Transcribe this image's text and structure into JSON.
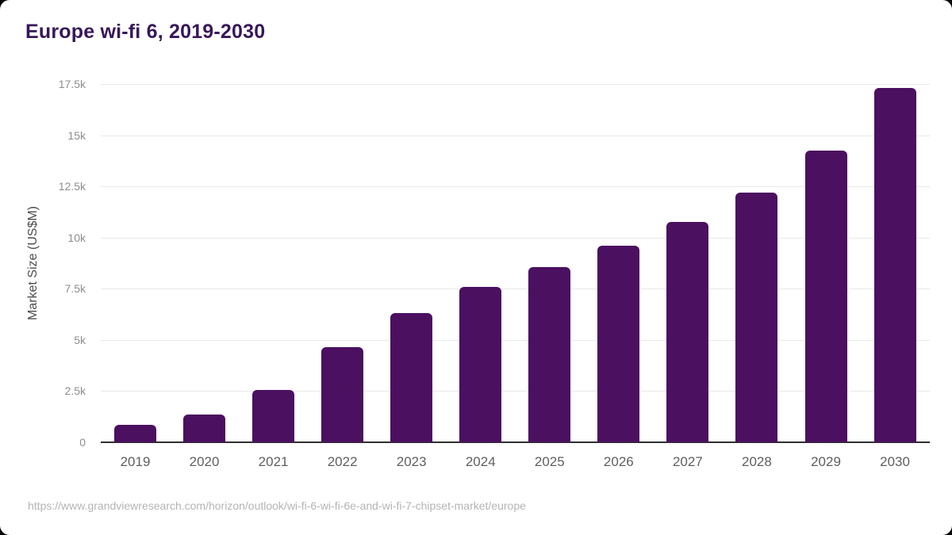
{
  "page": {
    "background_color": "#000000",
    "card_color": "#ffffff"
  },
  "header": {
    "title": "Europe wi-fi 6, 2019-2030",
    "title_color": "#381758"
  },
  "chart_data": {
    "type": "bar",
    "title": "Europe wi-fi 6, 2019-2030",
    "categories": [
      "2019",
      "2020",
      "2021",
      "2022",
      "2023",
      "2024",
      "2025",
      "2026",
      "2027",
      "2028",
      "2029",
      "2030"
    ],
    "values": [
      870,
      1340,
      2540,
      4650,
      6310,
      7580,
      8540,
      9600,
      10760,
      12200,
      14250,
      17300
    ],
    "xlabel": "",
    "ylabel": "Market Size (US$M)",
    "ylim": [
      0,
      17500
    ],
    "ytick_values": [
      0,
      2500,
      5000,
      7500,
      10000,
      12500,
      15000,
      17500
    ],
    "ytick_labels": [
      "0",
      "2.5k",
      "5k",
      "7.5k",
      "10k",
      "12.5k",
      "15k",
      "17.5k"
    ],
    "bar_color": "#4b1060",
    "grid": true,
    "legend": false
  },
  "footer": {
    "source_url": "https://www.grandviewresearch.com/horizon/outlook/wi-fi-6-wi-fi-6e-and-wi-fi-7-chipset-market/europe"
  }
}
